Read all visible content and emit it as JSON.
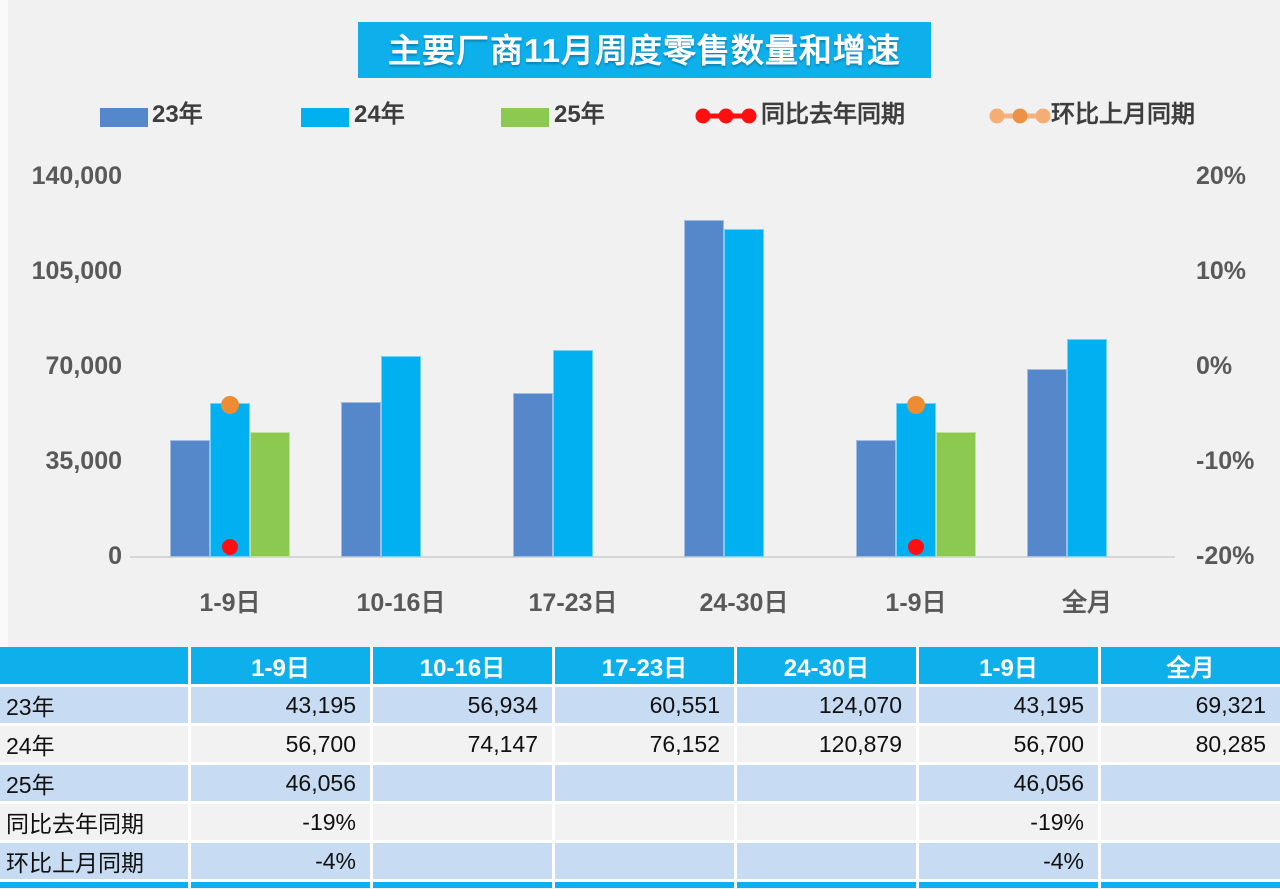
{
  "title": "主要厂商11月周度零售数量和增速",
  "colors": {
    "accent_cyan": "#0EB0EC",
    "bar_blue": "#5588CB",
    "bar_cyan": "#00B0F0",
    "bar_green": "#8CC951",
    "yoy_red": "#FF0F0F",
    "mom_orange": "#ED8C32",
    "mom_legend_line": "#F5B183",
    "mom_legend_dot_mid": "#EC9246",
    "mom_legend_dot_end": "#F4AE74",
    "row_light_blue": "#C7DBF2",
    "row_light_gray": "#F2F2F2",
    "axis_text": "#595959"
  },
  "legend": [
    {
      "label": "23年",
      "type": "swatch",
      "color": "#5588CB"
    },
    {
      "label": "24年",
      "type": "swatch",
      "color": "#00B0F0"
    },
    {
      "label": "25年",
      "type": "swatch",
      "color": "#8CC951"
    },
    {
      "label": "同比去年同期",
      "type": "line",
      "color": "#FF0F0F"
    },
    {
      "label": "环比上月同期",
      "type": "line",
      "color": "#F5B183"
    }
  ],
  "chart_data": {
    "type": "bar",
    "title": "主要厂商11月周度零售数量和增速",
    "categories": [
      "1-9日",
      "10-16日",
      "17-23日",
      "24-30日",
      "1-9日",
      "全月"
    ],
    "series": [
      {
        "name": "23年",
        "type": "bar",
        "color": "#5588CB",
        "values": [
          43195,
          56934,
          60551,
          124070,
          43195,
          69321
        ]
      },
      {
        "name": "24年",
        "type": "bar",
        "color": "#00B0F0",
        "values": [
          56700,
          74147,
          76152,
          120879,
          56700,
          80285
        ]
      },
      {
        "name": "25年",
        "type": "bar",
        "color": "#8CC951",
        "values": [
          46056,
          null,
          null,
          null,
          46056,
          null
        ]
      },
      {
        "name": "同比去年同期",
        "type": "point",
        "axis": "right",
        "color": "#FF0F0F",
        "values": [
          -19,
          null,
          null,
          null,
          -19,
          null
        ]
      },
      {
        "name": "环比上月同期",
        "type": "point",
        "axis": "right",
        "color": "#ED8C32",
        "values": [
          -4,
          null,
          null,
          null,
          -4,
          null
        ]
      }
    ],
    "left_axis": {
      "label": "",
      "min": 0,
      "max": 140000,
      "ticks": [
        "140,000",
        "105,000",
        "70,000",
        "35,000",
        "0"
      ]
    },
    "right_axis": {
      "label": "",
      "min": -20,
      "max": 20,
      "ticks": [
        "20%",
        "10%",
        "0%",
        "-10%",
        "-20%"
      ]
    },
    "grid": "baseline-only",
    "legend_position": "top"
  },
  "table": {
    "col_headers": [
      "",
      "1-9日",
      "10-16日",
      "17-23日",
      "24-30日",
      "1-9日",
      "全月"
    ],
    "rows": [
      {
        "label": "23年",
        "cells": [
          "43,195",
          "56,934",
          "60,551",
          "124,070",
          "43,195",
          "69,321"
        ]
      },
      {
        "label": "24年",
        "cells": [
          "56,700",
          "74,147",
          "76,152",
          "120,879",
          "56,700",
          "80,285"
        ]
      },
      {
        "label": "25年",
        "cells": [
          "46,056",
          "",
          "",
          "",
          "46,056",
          ""
        ]
      },
      {
        "label": "同比去年同期",
        "cells": [
          "-19%",
          "",
          "",
          "",
          "-19%",
          ""
        ]
      },
      {
        "label": "环比上月同期",
        "cells": [
          "-4%",
          "",
          "",
          "",
          "-4%",
          ""
        ]
      }
    ]
  }
}
